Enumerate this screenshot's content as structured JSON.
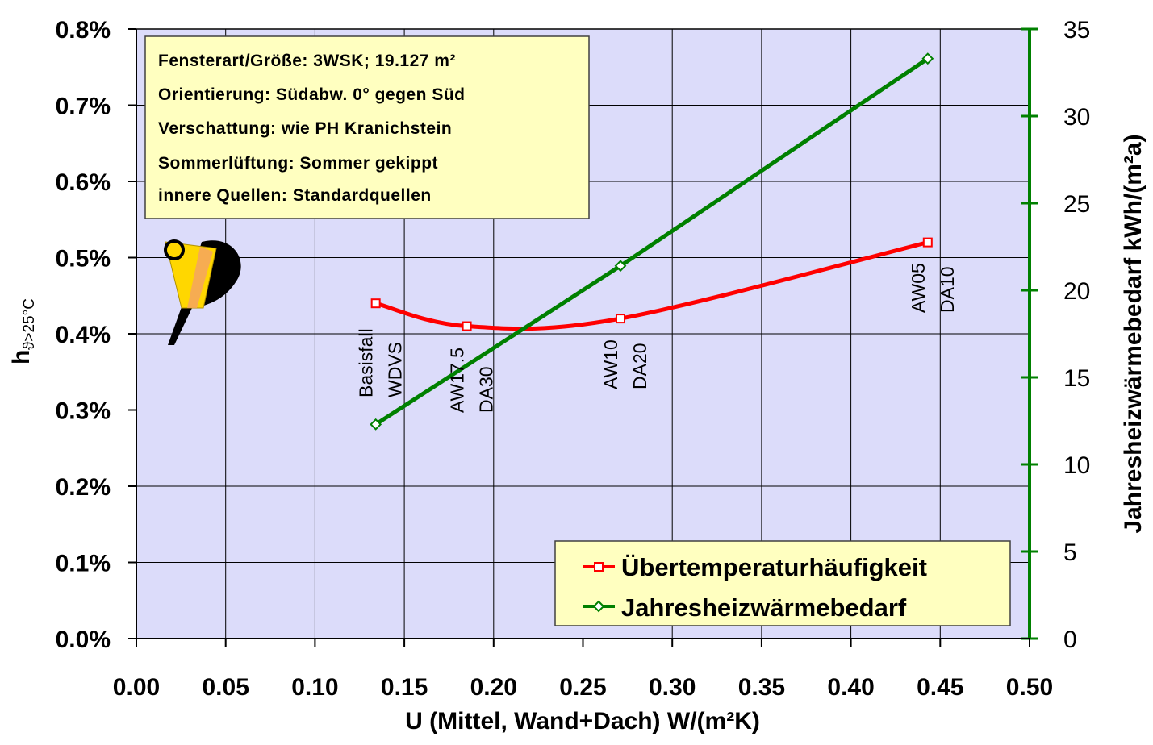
{
  "chart_data": {
    "type": "line",
    "xlabel": "U (Mittel, Wand+Dach) W/(m²K)",
    "ylabel_left_main": "h",
    "ylabel_left_sub": "ϑ>25°C",
    "ylabel_right": "Jahresheizwärmebedarf kWh/(m²a)",
    "xlim": [
      0.0,
      0.5
    ],
    "ylim_left": [
      0.0,
      0.8
    ],
    "ylim_right": [
      0,
      35
    ],
    "grid": true,
    "x_ticks": [
      "0.00",
      "0.05",
      "0.10",
      "0.15",
      "0.20",
      "0.25",
      "0.30",
      "0.35",
      "0.40",
      "0.45",
      "0.50"
    ],
    "y_left_ticks": [
      "0.0%",
      "0.1%",
      "0.2%",
      "0.3%",
      "0.4%",
      "0.5%",
      "0.6%",
      "0.7%",
      "0.8%"
    ],
    "y_right_ticks": [
      "0",
      "5",
      "10",
      "15",
      "20",
      "25",
      "30",
      "35"
    ],
    "legend_position": "bottom-right",
    "series": [
      {
        "name": "Übertemperaturhäufigkeit",
        "axis": "left",
        "color": "#ff0000",
        "marker": "square",
        "points": [
          {
            "x": 0.134,
            "y": 0.44
          },
          {
            "x": 0.185,
            "y": 0.41
          },
          {
            "x": 0.271,
            "y": 0.42
          },
          {
            "x": 0.443,
            "y": 0.52
          }
        ]
      },
      {
        "name": "Jahresheizwärmebedarf",
        "axis": "right",
        "color": "#008000",
        "marker": "diamond",
        "points": [
          {
            "x": 0.134,
            "y": 12.3
          },
          {
            "x": 0.271,
            "y": 21.4
          },
          {
            "x": 0.443,
            "y": 33.3
          }
        ]
      }
    ],
    "point_annotations": [
      {
        "x": 0.134,
        "lines": [
          "Basisfall",
          "WDVS"
        ]
      },
      {
        "x": 0.185,
        "lines": [
          "AW17.5",
          "DA30"
        ]
      },
      {
        "x": 0.271,
        "lines": [
          "AW10",
          "DA20"
        ]
      },
      {
        "x": 0.443,
        "lines": [
          "AW05",
          "DA10"
        ]
      }
    ],
    "info_box": [
      "Fensterart/Größe: 3WSK; 19.127 m²",
      "Orientierung: Südabw. 0° gegen Süd",
      "Verschattung: wie PH Kranichstein",
      "Sommerlüftung: Sommer gekippt",
      "innere Quellen: Standardquellen"
    ],
    "colors": {
      "plot_background": "#dcdcfa",
      "info_box_background": "#ffffc0",
      "legend_background": "#ffffc0",
      "right_axis": "#008000"
    }
  },
  "logo_icon": "passive-house-logo-icon"
}
